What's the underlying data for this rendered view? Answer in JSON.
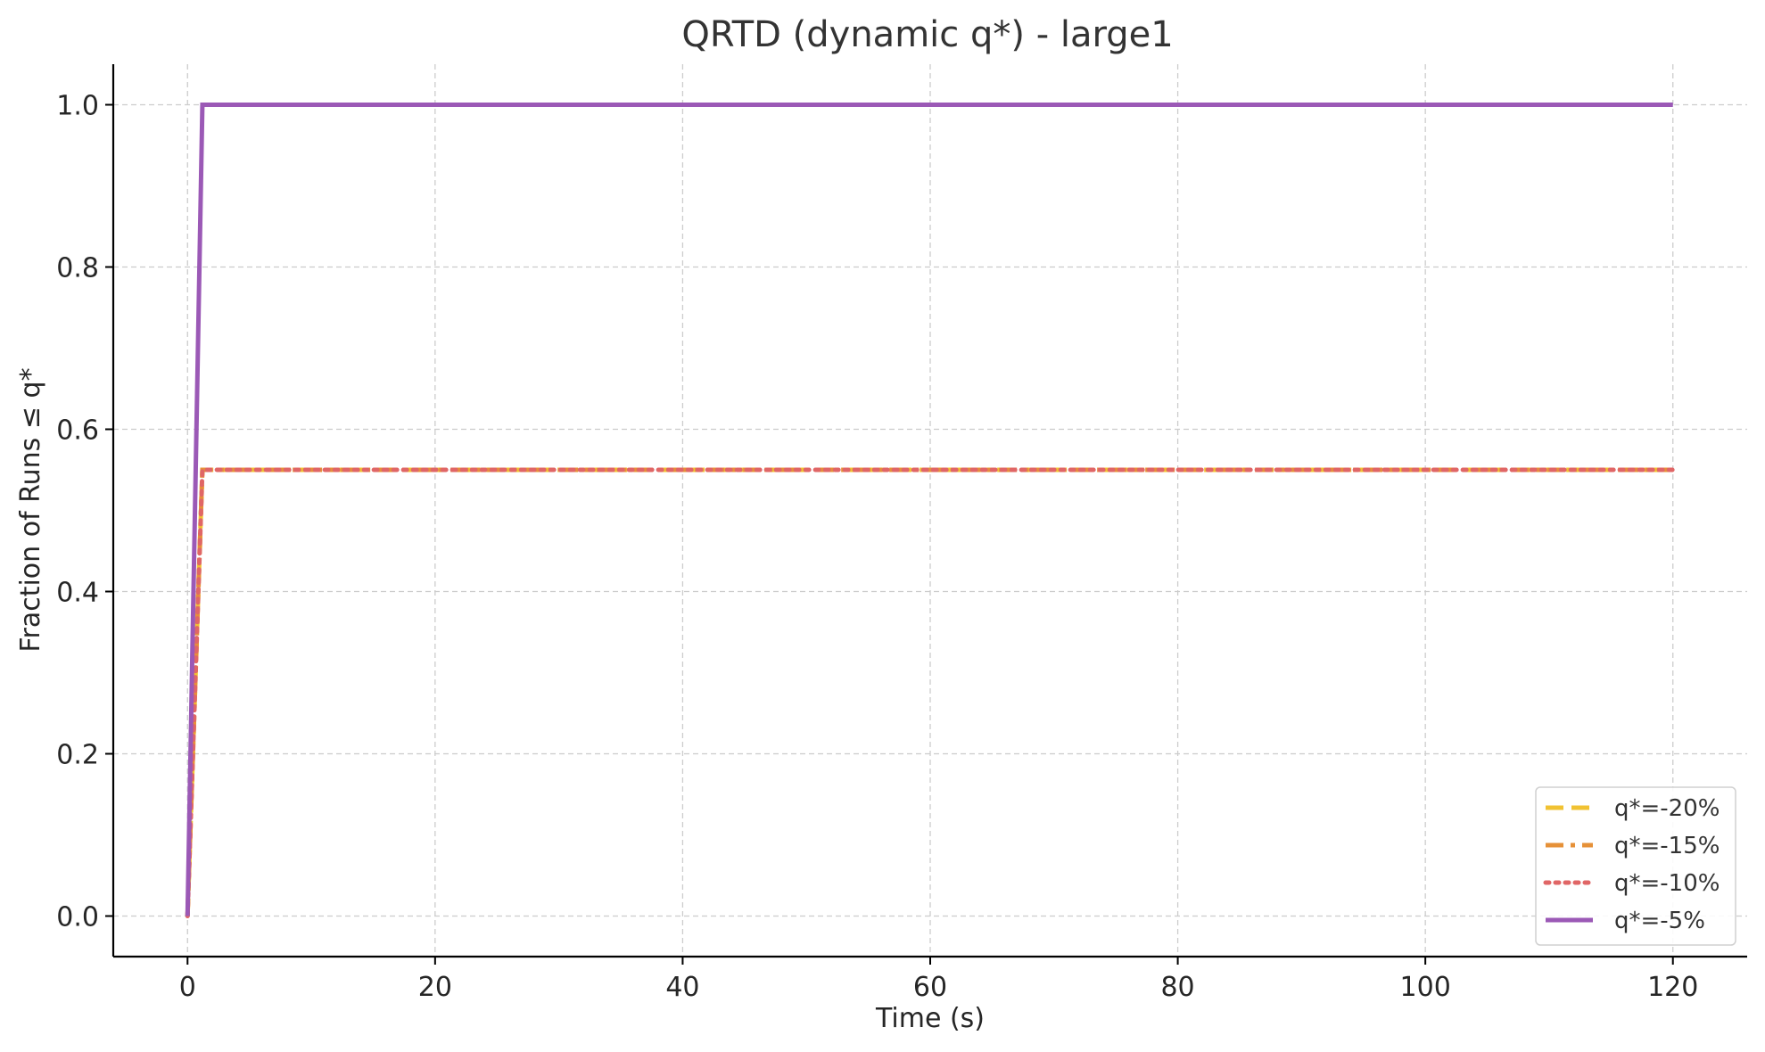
{
  "chart_data": {
    "type": "line",
    "title": "QRTD (dynamic q*) - large1",
    "xlabel": "Time (s)",
    "ylabel": "Fraction of Runs ≤ q*",
    "xlim": [
      -6,
      126
    ],
    "ylim": [
      -0.05,
      1.05
    ],
    "xticks": [
      0,
      20,
      40,
      60,
      80,
      100,
      120
    ],
    "yticks": [
      0.0,
      0.2,
      0.4,
      0.6,
      0.8,
      1.0
    ],
    "xtick_labels": [
      "0",
      "20",
      "40",
      "60",
      "80",
      "100",
      "120"
    ],
    "ytick_labels": [
      "0.0",
      "0.2",
      "0.4",
      "0.6",
      "0.8",
      "1.0"
    ],
    "grid": true,
    "legend_position": "bottom-right",
    "series": [
      {
        "name": "q*=-20%",
        "label": "q*=-20%",
        "color": "#f1c232",
        "style": "dashed",
        "x": [
          0,
          1.2,
          120
        ],
        "y": [
          0.0,
          0.55,
          0.55
        ]
      },
      {
        "name": "q*=-15%",
        "label": "q*=-15%",
        "color": "#e69138",
        "style": "dashdot",
        "x": [
          0,
          1.2,
          120
        ],
        "y": [
          0.0,
          0.55,
          0.55
        ]
      },
      {
        "name": "q*=-10%",
        "label": "q*=-10%",
        "color": "#e06666",
        "style": "dotted",
        "x": [
          0,
          1.2,
          120
        ],
        "y": [
          0.0,
          0.55,
          0.55
        ]
      },
      {
        "name": "q*=-5%",
        "label": "q*=-5%",
        "color": "#9b59b6",
        "style": "solid",
        "x": [
          0,
          1.2,
          120
        ],
        "y": [
          0.0,
          1.0,
          1.0
        ]
      }
    ]
  }
}
